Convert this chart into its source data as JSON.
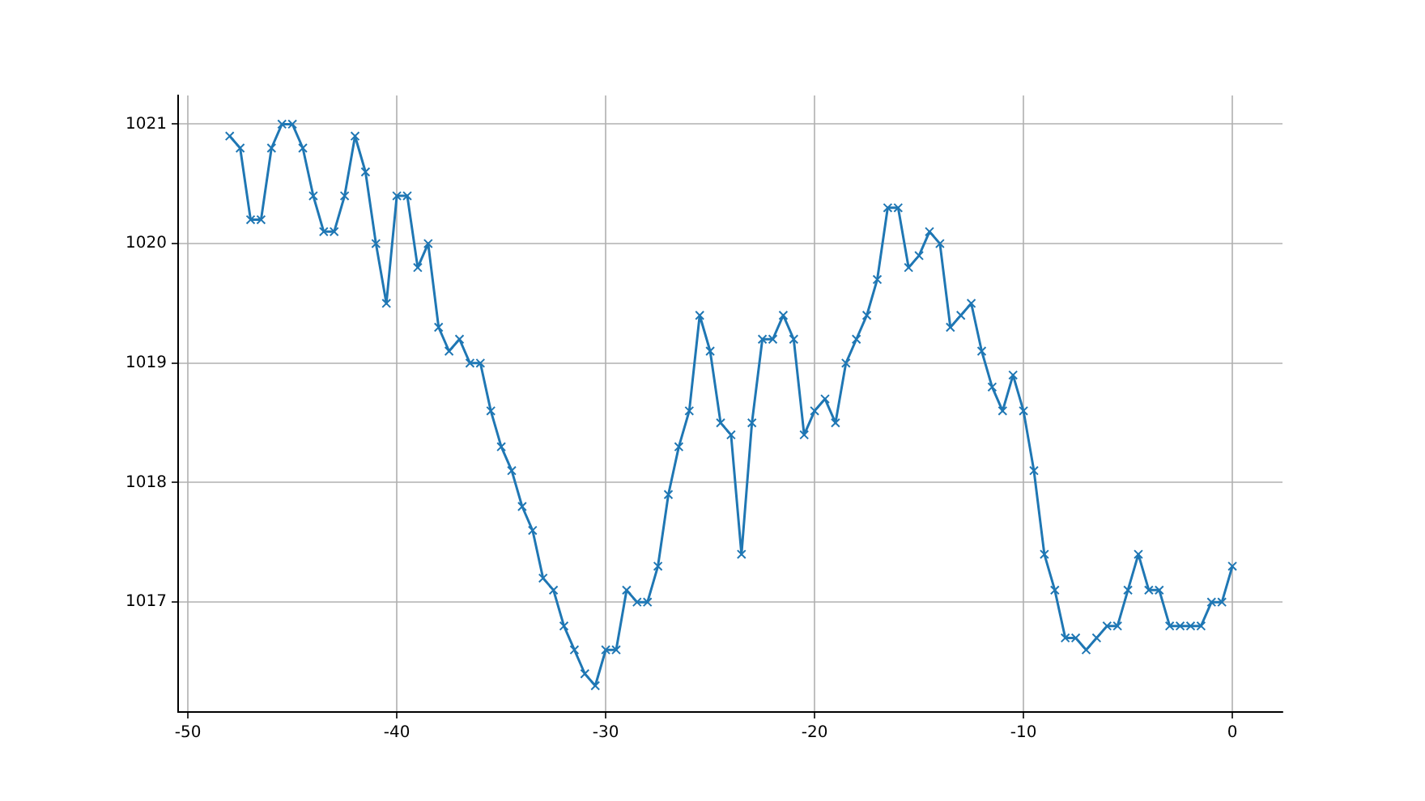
{
  "chart_data": {
    "type": "line",
    "x": [
      -48,
      -47.5,
      -47,
      -46.5,
      -46,
      -45.5,
      -45,
      -44.5,
      -44,
      -43.5,
      -43,
      -42.5,
      -42,
      -41.5,
      -41,
      -40.5,
      -40,
      -39.5,
      -39,
      -38.5,
      -38,
      -37.5,
      -37,
      -36.5,
      -36,
      -35.5,
      -35,
      -34.5,
      -34,
      -33.5,
      -33,
      -32.5,
      -32,
      -31.5,
      -31,
      -30.5,
      -30,
      -29.5,
      -29,
      -28.5,
      -28,
      -27.5,
      -27,
      -26.5,
      -26,
      -25.5,
      -25,
      -24.5,
      -24,
      -23.5,
      -23,
      -22.5,
      -22,
      -21.5,
      -21,
      -20.5,
      -20,
      -19.5,
      -19,
      -18.5,
      -18,
      -17.5,
      -17,
      -16.5,
      -16,
      -15.5,
      -15,
      -14.5,
      -14,
      -13.5,
      -13,
      -12.5,
      -12,
      -11.5,
      -11,
      -10.5,
      -10,
      -9.5,
      -9,
      -8.5,
      -8,
      -7.5,
      -7,
      -6.5,
      -6,
      -5.5,
      -5,
      -4.5,
      -4,
      -3.5,
      -3,
      -2.5,
      -2,
      -1.5,
      -1,
      -0.5,
      0
    ],
    "series": [
      {
        "color": "#1f77b4",
        "values": [
          1020.9,
          1020.8,
          1020.2,
          1020.2,
          1020.8,
          1021.0,
          1021.0,
          1020.8,
          1020.4,
          1020.1,
          1020.1,
          1020.4,
          1020.9,
          1020.6,
          1020.0,
          1019.5,
          1020.4,
          1020.4,
          1019.8,
          1020.0,
          1019.3,
          1019.1,
          1019.2,
          1019.0,
          1019.0,
          1018.6,
          1018.3,
          1018.1,
          1017.8,
          1017.6,
          1017.2,
          1017.1,
          1016.8,
          1016.6,
          1016.4,
          1016.3,
          1016.6,
          1016.6,
          1017.1,
          1017.0,
          1017.0,
          1017.3,
          1017.9,
          1018.3,
          1018.6,
          1019.4,
          1019.1,
          1018.5,
          1018.4,
          1017.4,
          1018.5,
          1019.2,
          1019.2,
          1019.4,
          1019.2,
          1018.4,
          1018.6,
          1018.7,
          1018.5,
          1019.0,
          1019.2,
          1019.4,
          1019.7,
          1020.3,
          1020.3,
          1019.8,
          1019.9,
          1020.1,
          1020.0,
          1019.3,
          1019.4,
          1019.5,
          1019.1,
          1018.8,
          1018.6,
          1018.9,
          1018.6,
          1018.1,
          1017.4,
          1017.1,
          1016.7,
          1016.7,
          1016.6,
          1016.7,
          1016.8,
          1016.8,
          1017.1,
          1017.4,
          1017.1,
          1017.1,
          1016.8,
          1016.8,
          1016.8,
          1016.8,
          1017.0,
          1017.0,
          1017.3
        ]
      }
    ],
    "xlim": [
      -50.47,
      2.4
    ],
    "xticks": [
      -50,
      -40,
      -30,
      -20,
      -10,
      0
    ],
    "ylim": [
      1016.08,
      1021.24
    ],
    "yticks": [
      1017,
      1018,
      1019,
      1020,
      1021
    ],
    "grid": true,
    "marker": "cross",
    "line_style": "solid",
    "legend": false
  }
}
